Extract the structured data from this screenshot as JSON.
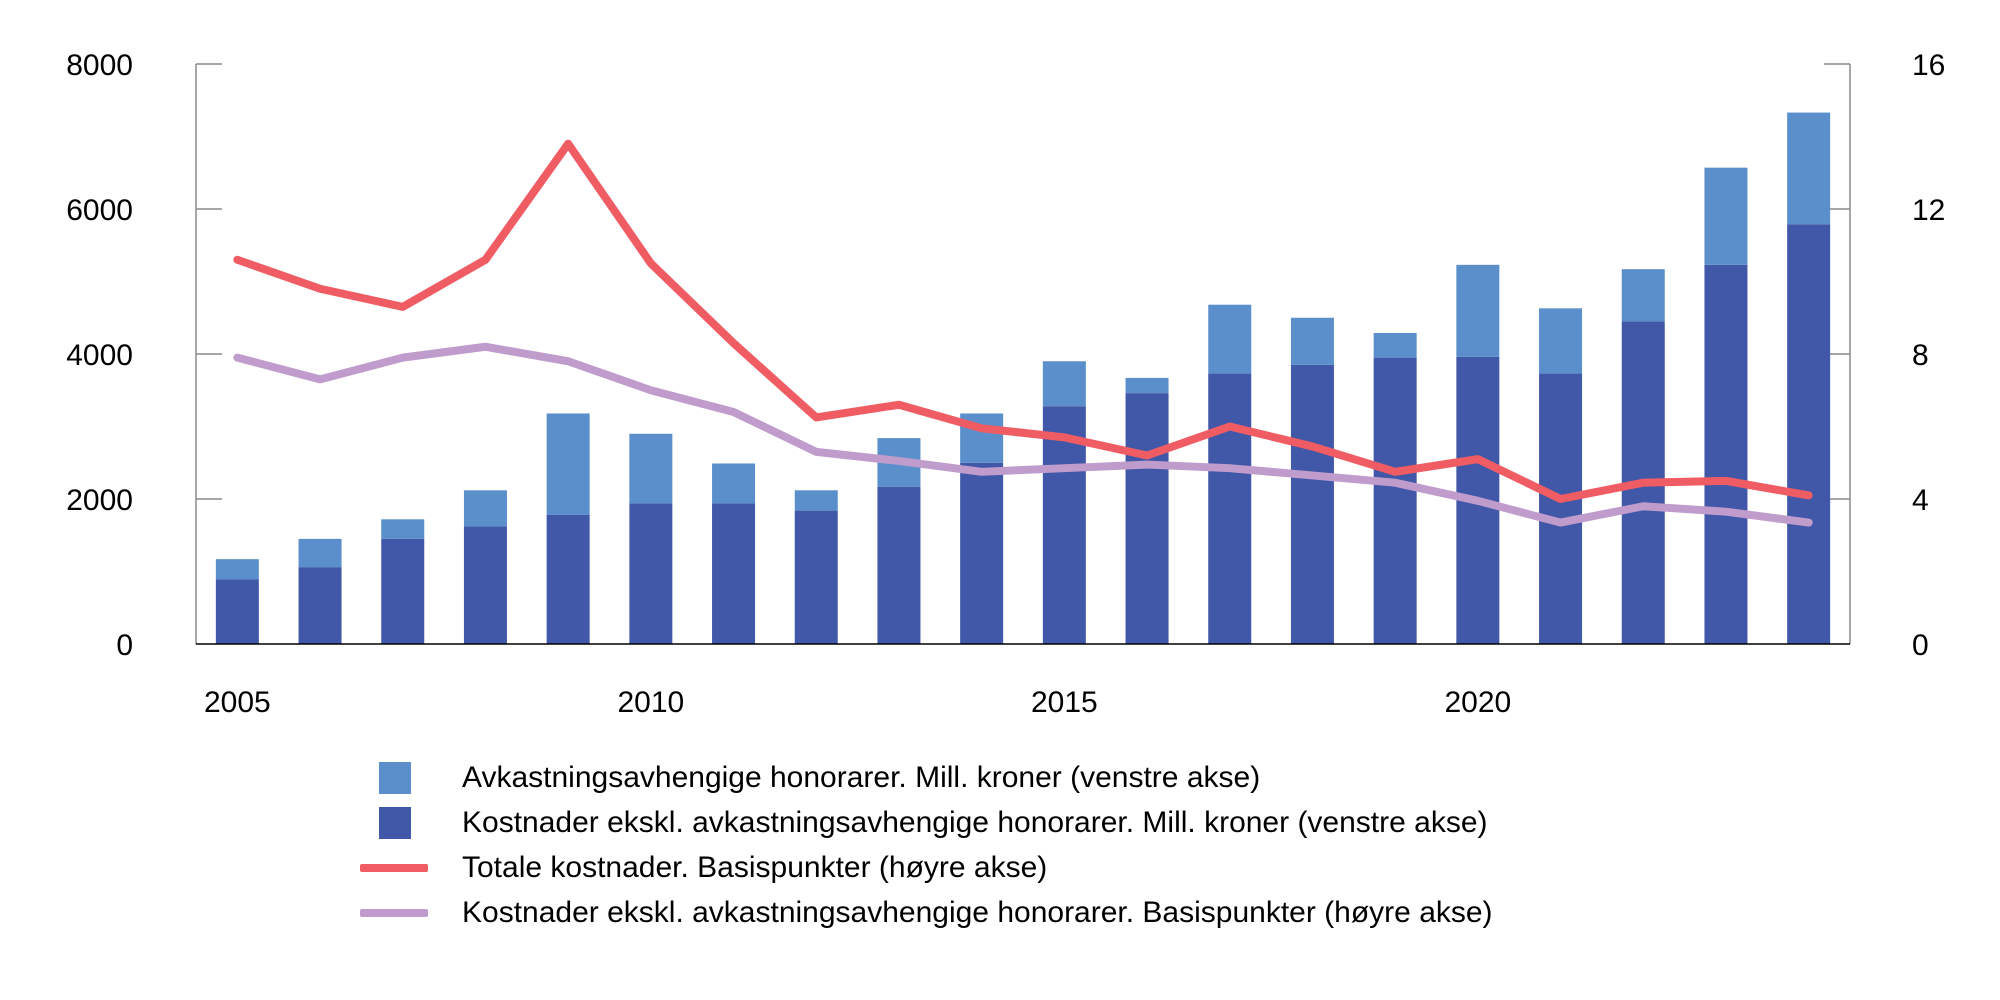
{
  "chart_data": {
    "type": "bar",
    "subtype": "stacked bar with line overlays (dual axis)",
    "title": "",
    "xlabel": "",
    "ylabel_left": "Mill. kroner",
    "ylabel_right": "Basispunkter",
    "categories": [
      "2005",
      "2006",
      "2007",
      "2008",
      "2009",
      "2010",
      "2011",
      "2012",
      "2013",
      "2014",
      "2015",
      "2016",
      "2017",
      "2018",
      "2019",
      "2020",
      "2021",
      "2022",
      "2023",
      "2024"
    ],
    "x_tick_labels": [
      "2005",
      "2010",
      "2015",
      "2020"
    ],
    "ylim_left": [
      0,
      8000
    ],
    "yticks_left": [
      0,
      2000,
      4000,
      6000,
      8000
    ],
    "ylim_right": [
      0,
      16
    ],
    "yticks_right": [
      0,
      4,
      8,
      12,
      16
    ],
    "grid": false,
    "legend_position": "bottom",
    "series": [
      {
        "name": "Kostnader ekskl. avkastningsavhengige honorarer. Mill. kroner (venstre akse)",
        "type": "bar",
        "axis": "left",
        "stack": "base",
        "color": "#4157a7",
        "values": [
          890,
          1060,
          1450,
          1620,
          1780,
          1940,
          1940,
          1840,
          2170,
          2500,
          3280,
          3460,
          3730,
          3850,
          3950,
          3960,
          3730,
          4450,
          5230,
          5790
        ]
      },
      {
        "name": "Avkastningsavhengige honorarer. Mill. kroner (venstre akse)",
        "type": "bar",
        "axis": "left",
        "stack": "top",
        "color": "#5b8fcb",
        "values": [
          280,
          390,
          270,
          500,
          1400,
          960,
          550,
          280,
          670,
          680,
          620,
          210,
          950,
          650,
          340,
          1270,
          900,
          720,
          1340,
          1540
        ]
      },
      {
        "name": "Totale kostnader. Basispunkter (høyre akse)",
        "type": "line",
        "axis": "right",
        "color": "#f05c63",
        "values": [
          10.6,
          9.8,
          9.3,
          10.6,
          13.8,
          10.5,
          8.3,
          6.25,
          6.6,
          5.95,
          5.7,
          5.2,
          6.0,
          5.45,
          4.75,
          5.1,
          4.0,
          4.45,
          4.5,
          4.1
        ]
      },
      {
        "name": "Kostnader ekskl. avkastningsavhengige honorarer. Basispunkter (høyre akse)",
        "type": "line",
        "axis": "right",
        "color": "#c09ccc",
        "values": [
          7.9,
          7.3,
          7.9,
          8.2,
          7.8,
          7.0,
          6.4,
          5.3,
          5.05,
          4.75,
          4.85,
          4.95,
          4.85,
          4.65,
          4.45,
          3.95,
          3.35,
          3.8,
          3.65,
          3.35
        ]
      }
    ]
  },
  "legend": {
    "items": [
      {
        "label": "Avkastningsavhengige honorarer. Mill. kroner (venstre akse)",
        "kind": "box",
        "color": "#5b8fcb"
      },
      {
        "label": "Kostnader ekskl. avkastningsavhengige honorarer. Mill. kroner (venstre akse)",
        "kind": "box",
        "color": "#4157a7"
      },
      {
        "label": "Totale kostnader. Basispunkter (høyre akse)",
        "kind": "line",
        "color": "#f05c63"
      },
      {
        "label": "Kostnader ekskl. avkastningsavhengige honorarer. Basispunkter (høyre akse)",
        "kind": "line",
        "color": "#c09ccc"
      }
    ]
  }
}
